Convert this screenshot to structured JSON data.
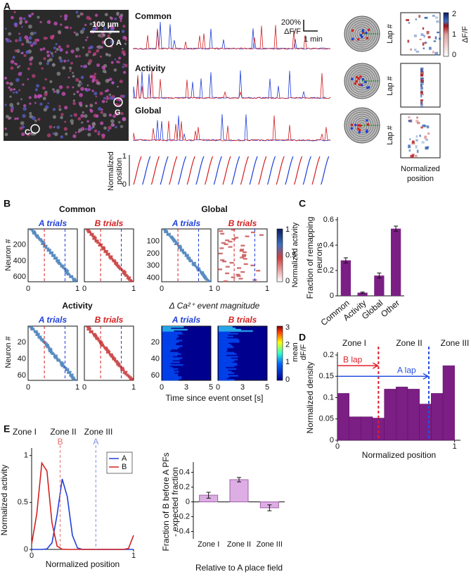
{
  "figure": {
    "panel_labels": [
      "A",
      "B",
      "C",
      "D",
      "E"
    ],
    "A": {
      "scale_bar": "100 µm",
      "cells": [
        "A",
        "G",
        "C"
      ],
      "traces": [
        "Common",
        "Activity",
        "Global"
      ],
      "scale_pct": "200%",
      "scale_unit": "ΔF/F",
      "scale_time": "1 min",
      "position_label": [
        "Normalized",
        "position"
      ],
      "position_ticks": [
        "1",
        "0"
      ],
      "lap_label": "Lap #",
      "colorbar_ticks": [
        "2",
        "1",
        "0"
      ],
      "colorbar_label": "ΔF/F",
      "heatmap_xlabel": [
        "Normalized",
        "position"
      ]
    },
    "B": {
      "titles": [
        "Common",
        "Global",
        "Activity",
        "Δ Ca²⁺ event magnitude"
      ],
      "trial_labels": [
        "A trials",
        "B trials"
      ],
      "ylabel": "Neuron #",
      "common_yticks": [
        200,
        400,
        600
      ],
      "global_yticks": [
        100,
        200,
        300,
        400
      ],
      "activity_yticks": [
        20,
        40,
        60
      ],
      "magnitude_yticks": [
        20,
        40,
        60
      ],
      "position_xticks": [
        0,
        1
      ],
      "time_xticks": [
        0,
        3,
        5
      ],
      "time_label": "Time since event onset [s]",
      "colorbar1_ticks": [
        1,
        0.5,
        0
      ],
      "colorbar1_label": "Normalized activity",
      "colorbar2_ticks": [
        3,
        2,
        1,
        0
      ],
      "colorbar2_label": [
        "mean",
        "dF/F"
      ]
    }
  },
  "chart_data": [
    {
      "type": "bar",
      "categories": [
        "Common",
        "Activity",
        "Global",
        "Other"
      ],
      "values": [
        0.28,
        0.025,
        0.16,
        0.53
      ],
      "errors": [
        0.02,
        0.005,
        0.02,
        0.02
      ],
      "color": "#7b1f84",
      "ylabel": [
        "Fraction of remapping",
        "neurons"
      ],
      "ylim": [
        0,
        0.6
      ],
      "yticks": [
        0,
        0.2,
        0.4,
        0.6
      ]
    },
    {
      "type": "histogram",
      "bins": [
        0,
        0.1,
        0.2,
        0.3,
        0.4,
        0.5,
        0.6,
        0.7,
        0.8,
        0.9,
        1.0
      ],
      "values": [
        0.11,
        0.055,
        0.055,
        0.052,
        0.12,
        0.125,
        0.12,
        0.085,
        0.11,
        0.175
      ],
      "color": "#7b1f84",
      "xlim": [
        0,
        1.05
      ],
      "xticks": [
        0,
        1
      ],
      "ylim": [
        0,
        0.2
      ],
      "yticks": [
        0,
        0.05,
        0.1,
        0.15,
        0.2
      ],
      "xlabel": "Normalized position",
      "ylabel": "Normalized density",
      "markers": [
        {
          "x": 0.35,
          "color": "#e0202a"
        },
        {
          "x": 0.78,
          "color": "#2850e0"
        }
      ],
      "zones": [
        "Zone I",
        "Zone II",
        "Zone III"
      ],
      "arrows": [
        {
          "label": "B lap",
          "x": [
            0,
            0.35
          ],
          "y": 0.175,
          "color": "#e0202a"
        },
        {
          "label": "A lap",
          "x": [
            0,
            0.78
          ],
          "y": 0.15,
          "color": "#2850e0"
        }
      ]
    },
    {
      "type": "line",
      "x": [
        0,
        0.05,
        0.1,
        0.15,
        0.2,
        0.25,
        0.3,
        0.35,
        0.4,
        0.45,
        0.5,
        0.55,
        0.6,
        0.65,
        0.7,
        0.75,
        0.8,
        0.85,
        0.9,
        0.95,
        1
      ],
      "series": [
        {
          "name": "A",
          "color": "#2040d8",
          "values": [
            0,
            0,
            0,
            0.005,
            0.07,
            0.37,
            0.75,
            0.56,
            0.15,
            0.015,
            0,
            0,
            0,
            0,
            0,
            0,
            0,
            0,
            0,
            0,
            0
          ]
        },
        {
          "name": "B",
          "color": "#d42020",
          "values": [
            0.056,
            0.375,
            0.92,
            0.835,
            0.28,
            0.034,
            0.002,
            0,
            0,
            0,
            0,
            0,
            0,
            0,
            0,
            0,
            0,
            0,
            0,
            0.01,
            0.15
          ]
        }
      ],
      "xlim": [
        0,
        1
      ],
      "xticks": [
        0,
        1
      ],
      "ylim": [
        0,
        1.05
      ],
      "yticks": [
        0,
        0.5,
        1
      ],
      "xlabel": "Normalized position",
      "ylabel": "Normalized activity",
      "legend": "upper right",
      "zones": [
        "Zone I",
        "Zone II",
        "Zone III"
      ],
      "markers": [
        {
          "label": "B",
          "x": 0.28,
          "color": "#e07070"
        },
        {
          "label": "A",
          "x": 0.63,
          "color": "#8090e0"
        }
      ]
    },
    {
      "type": "bar",
      "categories": [
        "Zone I",
        "Zone II",
        "Zone III"
      ],
      "values": [
        0.09,
        0.3,
        -0.08
      ],
      "errors": [
        0.04,
        0.03,
        0.04
      ],
      "color": "#dcaee3",
      "ylabel": [
        "Fraction of B before A PFs",
        "- expected fraction"
      ],
      "xlabel": "Relative to A place field",
      "ylim": [
        -0.5,
        0.5
      ],
      "yticks": [
        -0.4,
        -0.2,
        0,
        0.2,
        0.4
      ]
    }
  ]
}
